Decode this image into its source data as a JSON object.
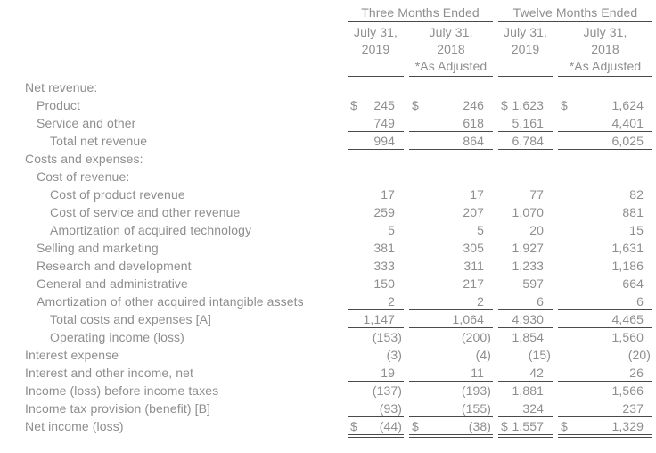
{
  "colors": {
    "text": "#8e8e8e",
    "rule": "#4a4a4a",
    "background": "#ffffff"
  },
  "table": {
    "col_groups": [
      {
        "label": "Three Months Ended"
      },
      {
        "label": "Twelve Months Ended"
      }
    ],
    "columns": [
      {
        "line1": "July 31,",
        "line2": "2019",
        "line3": ""
      },
      {
        "line1": "July 31,",
        "line2": "2018",
        "line3": "*As Adjusted"
      },
      {
        "line1": "July 31,",
        "line2": "2019",
        "line3": ""
      },
      {
        "line1": "July 31,",
        "line2": "2018",
        "line3": "*As Adjusted"
      }
    ],
    "rows": [
      {
        "label": "Net revenue:",
        "indent": 0,
        "values": null
      },
      {
        "label": "Product",
        "indent": 1,
        "dollar": true,
        "values": [
          "245",
          "246",
          "1,623",
          "1,624"
        ]
      },
      {
        "label": "Service and other",
        "indent": 1,
        "values": [
          "749",
          "618",
          "5,161",
          "4,401"
        ],
        "border_bottom": "single"
      },
      {
        "label": "Total net revenue",
        "indent": 2,
        "values": [
          "994",
          "864",
          "6,784",
          "6,025"
        ],
        "border_bottom": "single"
      },
      {
        "label": "Costs and expenses:",
        "indent": 0,
        "values": null
      },
      {
        "label": "Cost of revenue:",
        "indent": 1,
        "values": null
      },
      {
        "label": "Cost of product revenue",
        "indent": 2,
        "values": [
          "17",
          "17",
          "77",
          "82"
        ]
      },
      {
        "label": "Cost of service and other revenue",
        "indent": 2,
        "values": [
          "259",
          "207",
          "1,070",
          "881"
        ]
      },
      {
        "label": "Amortization of acquired technology",
        "indent": 2,
        "values": [
          "5",
          "5",
          "20",
          "15"
        ]
      },
      {
        "label": "Selling and marketing",
        "indent": 1,
        "values": [
          "381",
          "305",
          "1,927",
          "1,631"
        ]
      },
      {
        "label": "Research and development",
        "indent": 1,
        "values": [
          "333",
          "311",
          "1,233",
          "1,186"
        ]
      },
      {
        "label": "General and administrative",
        "indent": 1,
        "values": [
          "150",
          "217",
          "597",
          "664"
        ]
      },
      {
        "label": "Amortization of other acquired intangible assets",
        "indent": 1,
        "values": [
          "2",
          "2",
          "6",
          "6"
        ],
        "border_bottom": "single"
      },
      {
        "label": "Total costs and expenses [A]",
        "indent": 2,
        "values": [
          "1,147",
          "1,064",
          "4,930",
          "4,465"
        ],
        "border_bottom": "single"
      },
      {
        "label": "Operating income (loss)",
        "indent": 2,
        "values": [
          "(153)",
          "(200)",
          "1,854",
          "1,560"
        ]
      },
      {
        "label": "Interest expense",
        "indent": 0,
        "values": [
          "(3)",
          "(4)",
          "(15)",
          "(20)"
        ]
      },
      {
        "label": "Interest and other income, net",
        "indent": 0,
        "values": [
          "19",
          "11",
          "42",
          "26"
        ],
        "border_bottom": "single"
      },
      {
        "label": "Income (loss) before income taxes",
        "indent": 0,
        "values": [
          "(137)",
          "(193)",
          "1,881",
          "1,566"
        ]
      },
      {
        "label": "Income tax provision (benefit) [B]",
        "indent": 0,
        "values": [
          "(93)",
          "(155)",
          "324",
          "237"
        ],
        "border_bottom": "single"
      },
      {
        "label": "Net income (loss)",
        "indent": 0,
        "dollar": true,
        "values": [
          "(44)",
          "(38)",
          "1,557",
          "1,329"
        ],
        "border_bottom": "double"
      }
    ]
  }
}
